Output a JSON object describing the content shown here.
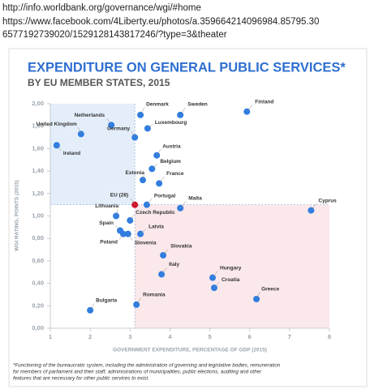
{
  "links": [
    "http://info.worldbank.org/governance/wgi/#home",
    "https://www.facebook.com/4Liberty.eu/photos/a.359664214096984.85795.30",
    "6577192739020/1529128143817246/?type=3&theater"
  ],
  "chart_data": {
    "type": "scatter",
    "title": "EXPENDITURE ON GENERAL PUBLIC SERVICES*",
    "subtitle": "BY EU MEMBER STATES, 2015",
    "x_label": "GOVERNMENT EXPENDITURE, PERCENTAGE OF GDP (2015)",
    "y_label": "WGI RATING, POINTS (2015)",
    "labels": [
      "Finland",
      "Denmark",
      "Sweden",
      "Netherlands",
      "Luxembourg",
      "United Kingdom",
      "Germany",
      "Ireland",
      "Austria",
      "Belgium",
      "Estonia",
      "France",
      "EU (28)",
      "Portugal",
      "Malta",
      "Cyprus",
      "Lithuania",
      "Czech Republic",
      "Latvia",
      "Spain",
      "Poland",
      "Slovenia",
      "Slovakia",
      "Italy",
      "Hungary",
      "Croatia",
      "Greece",
      "Romania",
      "Bulgaria"
    ],
    "x": [
      5.93,
      3.26,
      4.26,
      2.53,
      3.44,
      1.77,
      3.12,
      1.16,
      3.67,
      3.55,
      3.32,
      3.73,
      3.12,
      3.42,
      4.26,
      7.54,
      2.65,
      3.0,
      3.26,
      2.75,
      2.83,
      2.95,
      3.83,
      3.79,
      5.07,
      5.11,
      6.17,
      3.16,
      2.0
    ],
    "values": [
      1.93,
      1.9,
      1.9,
      1.81,
      1.78,
      1.73,
      1.7,
      1.63,
      1.54,
      1.42,
      1.32,
      1.29,
      1.1,
      1.1,
      1.07,
      1.05,
      1.0,
      0.96,
      0.84,
      0.87,
      0.84,
      0.84,
      0.65,
      0.48,
      0.45,
      0.36,
      0.26,
      0.21,
      0.16
    ],
    "color": "#2f7de1",
    "highlight_index": 12,
    "highlight_color": "#d0112b",
    "reference": {
      "x": 3.12,
      "y": 1.1
    },
    "xlim": [
      1,
      8
    ],
    "xticks": [
      1,
      2,
      3,
      4,
      5,
      6,
      7,
      8
    ],
    "ylim": [
      0,
      2
    ],
    "yticks": [
      {
        "value": 0,
        "label": "0,00"
      },
      {
        "value": 0.2,
        "label": "0,20"
      },
      {
        "value": 0.4,
        "label": "0,40"
      },
      {
        "value": 0.6,
        "label": "0,60"
      },
      {
        "value": 0.8,
        "label": "0,80"
      },
      {
        "value": 1.0,
        "label": "1,00"
      },
      {
        "value": 1.2,
        "label": "1,20"
      },
      {
        "value": 1.4,
        "label": "1,40"
      },
      {
        "value": 1.6,
        "label": "1,60"
      },
      {
        "value": 1.8,
        "label": "1,80"
      },
      {
        "value": 2.0,
        "label": "2,00"
      }
    ],
    "footnote": [
      "*Functioning of the bureaucratic system, including the administration of governing and legislative bodies, remuneration",
      "for members of parliament and their staff, administrations of municipalities, public elections, auditing and other",
      "features that are necessary for other public services to exist."
    ]
  }
}
